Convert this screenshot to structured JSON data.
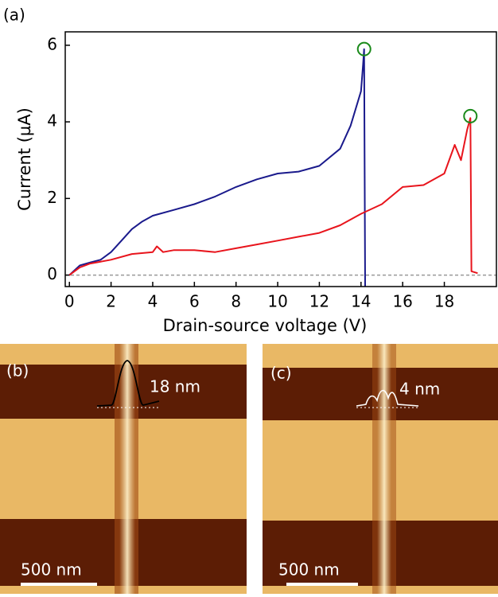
{
  "chart_data": {
    "type": "line",
    "label": "(a)",
    "x_label": "Drain-source voltage (V)",
    "y_label": "Current (µA)",
    "xlim": [
      -0.2,
      20.5
    ],
    "ylim": [
      -0.3,
      6.35
    ],
    "xticks": [
      0,
      2,
      4,
      6,
      8,
      10,
      12,
      14,
      16,
      18
    ],
    "yticks": [
      0,
      2,
      4,
      6
    ],
    "hline": 0,
    "hline_color": "#999999",
    "series": [
      {
        "color": "#1a1a8c",
        "x": [
          0,
          0.5,
          1,
          1.5,
          2,
          2.5,
          3,
          3.5,
          4,
          5,
          6,
          7,
          8,
          9,
          10,
          11,
          12,
          13,
          13.5,
          14,
          14.1,
          14.15,
          14.2
        ],
        "values": [
          0,
          0.25,
          0.33,
          0.4,
          0.6,
          0.9,
          1.2,
          1.4,
          1.55,
          1.7,
          1.85,
          2.05,
          2.3,
          2.5,
          2.65,
          2.7,
          2.85,
          3.3,
          3.9,
          4.8,
          5.5,
          5.9,
          -0.3
        ]
      },
      {
        "color": "#e8141c",
        "x": [
          0,
          0.5,
          1,
          2,
          3,
          4,
          4.2,
          4.5,
          5,
          6,
          7,
          8,
          9,
          10,
          11,
          12,
          13,
          14,
          15,
          16,
          17,
          18,
          18.5,
          18.8,
          19.1,
          19.25,
          19.3,
          19.6
        ],
        "values": [
          0,
          0.2,
          0.3,
          0.4,
          0.55,
          0.6,
          0.75,
          0.6,
          0.65,
          0.65,
          0.6,
          0.7,
          0.8,
          0.9,
          1.0,
          1.1,
          1.3,
          1.6,
          1.85,
          2.3,
          2.35,
          2.65,
          3.4,
          3.0,
          3.8,
          4.1,
          0.1,
          0.05
        ]
      }
    ],
    "circles": {
      "color": "#1a8a1a",
      "x": [
        14.15,
        19.25
      ],
      "values": [
        5.9,
        4.15
      ]
    }
  },
  "panels": [
    {
      "label": "(b)",
      "height_label": "18 nm",
      "scale_label": "500 nm"
    },
    {
      "label": "(c)",
      "height_label": "4 nm",
      "scale_label": "500 nm"
    }
  ]
}
